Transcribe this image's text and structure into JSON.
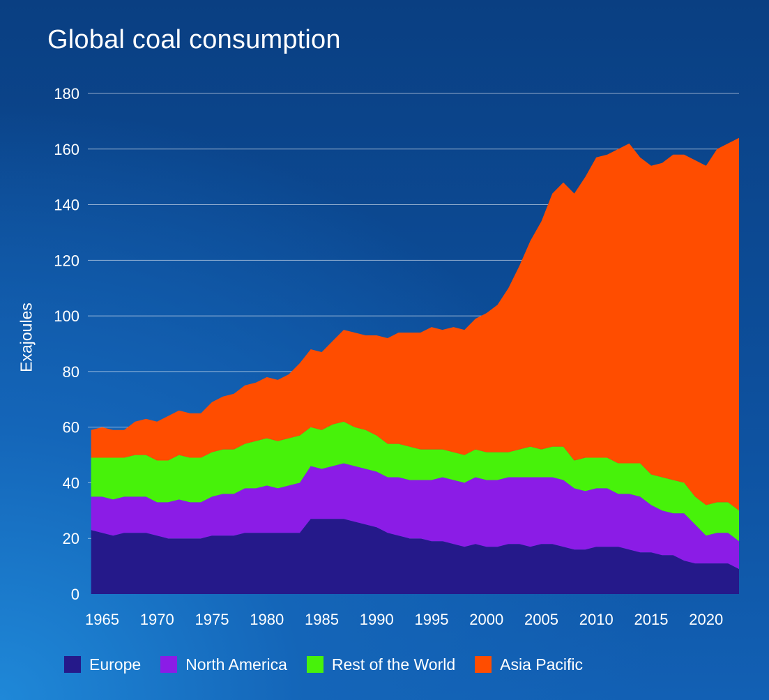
{
  "chart_data": {
    "type": "area",
    "stacked": true,
    "title": "Global coal consumption",
    "ylabel": "Exajoules",
    "xlabel": "",
    "xlim": [
      1963.7,
      2023
    ],
    "ylim": [
      0,
      180
    ],
    "yticks": [
      0,
      20,
      40,
      60,
      80,
      100,
      120,
      140,
      160,
      180
    ],
    "xticks": [
      1965,
      1970,
      1975,
      1980,
      1985,
      1990,
      1995,
      2000,
      2005,
      2010,
      2015,
      2020
    ],
    "grid": true,
    "legend_position": "bottom",
    "x": [
      1964,
      1965,
      1966,
      1967,
      1968,
      1969,
      1970,
      1971,
      1972,
      1973,
      1974,
      1975,
      1976,
      1977,
      1978,
      1979,
      1980,
      1981,
      1982,
      1983,
      1984,
      1985,
      1986,
      1987,
      1988,
      1989,
      1990,
      1991,
      1992,
      1993,
      1994,
      1995,
      1996,
      1997,
      1998,
      1999,
      2000,
      2001,
      2002,
      2003,
      2004,
      2005,
      2006,
      2007,
      2008,
      2009,
      2010,
      2011,
      2012,
      2013,
      2014,
      2015,
      2016,
      2017,
      2018,
      2019,
      2020,
      2021,
      2022,
      2023
    ],
    "series": [
      {
        "name": "Europe",
        "color": "#25198a",
        "values": [
          23,
          22,
          21,
          22,
          22,
          22,
          21,
          20,
          20,
          20,
          20,
          21,
          21,
          21,
          22,
          22,
          22,
          22,
          22,
          22,
          27,
          27,
          27,
          27,
          26,
          25,
          24,
          22,
          21,
          20,
          20,
          19,
          19,
          18,
          17,
          18,
          17,
          17,
          18,
          18,
          17,
          18,
          18,
          17,
          16,
          16,
          17,
          17,
          17,
          16,
          15,
          15,
          14,
          14,
          12,
          11,
          11,
          11,
          11,
          9
        ]
      },
      {
        "name": "North America",
        "color": "#8b1ce6",
        "values": [
          12,
          13,
          13,
          13,
          13,
          13,
          12,
          13,
          14,
          13,
          13,
          14,
          15,
          15,
          16,
          16,
          17,
          16,
          17,
          18,
          19,
          18,
          19,
          20,
          20,
          20,
          20,
          20,
          21,
          21,
          21,
          22,
          23,
          23,
          23,
          24,
          24,
          24,
          24,
          24,
          25,
          24,
          24,
          24,
          22,
          21,
          21,
          21,
          19,
          20,
          20,
          17,
          16,
          15,
          17,
          14,
          10,
          11,
          11,
          10
        ]
      },
      {
        "name": "Rest of the World",
        "color": "#47f20a",
        "values": [
          14,
          14,
          15,
          14,
          15,
          15,
          15,
          15,
          16,
          16,
          16,
          16,
          16,
          16,
          16,
          17,
          17,
          17,
          17,
          17,
          14,
          14,
          15,
          15,
          14,
          14,
          13,
          12,
          12,
          12,
          11,
          11,
          10,
          10,
          10,
          10,
          10,
          10,
          9,
          10,
          11,
          10,
          11,
          12,
          10,
          12,
          11,
          11,
          11,
          11,
          12,
          11,
          12,
          12,
          11,
          10,
          11,
          11,
          11,
          11
        ]
      },
      {
        "name": "Asia Pacific",
        "color": "#ff4d00",
        "values": [
          10,
          11,
          10,
          10,
          12,
          13,
          14,
          16,
          16,
          16,
          16,
          18,
          19,
          20,
          21,
          21,
          22,
          22,
          23,
          26,
          28,
          28,
          30,
          33,
          34,
          34,
          36,
          38,
          40,
          41,
          42,
          44,
          43,
          45,
          45,
          47,
          50,
          53,
          59,
          66,
          74,
          82,
          91,
          95,
          96,
          101,
          108,
          109,
          113,
          115,
          110,
          111,
          113,
          117,
          118,
          121,
          122,
          127,
          129,
          134
        ]
      }
    ]
  }
}
